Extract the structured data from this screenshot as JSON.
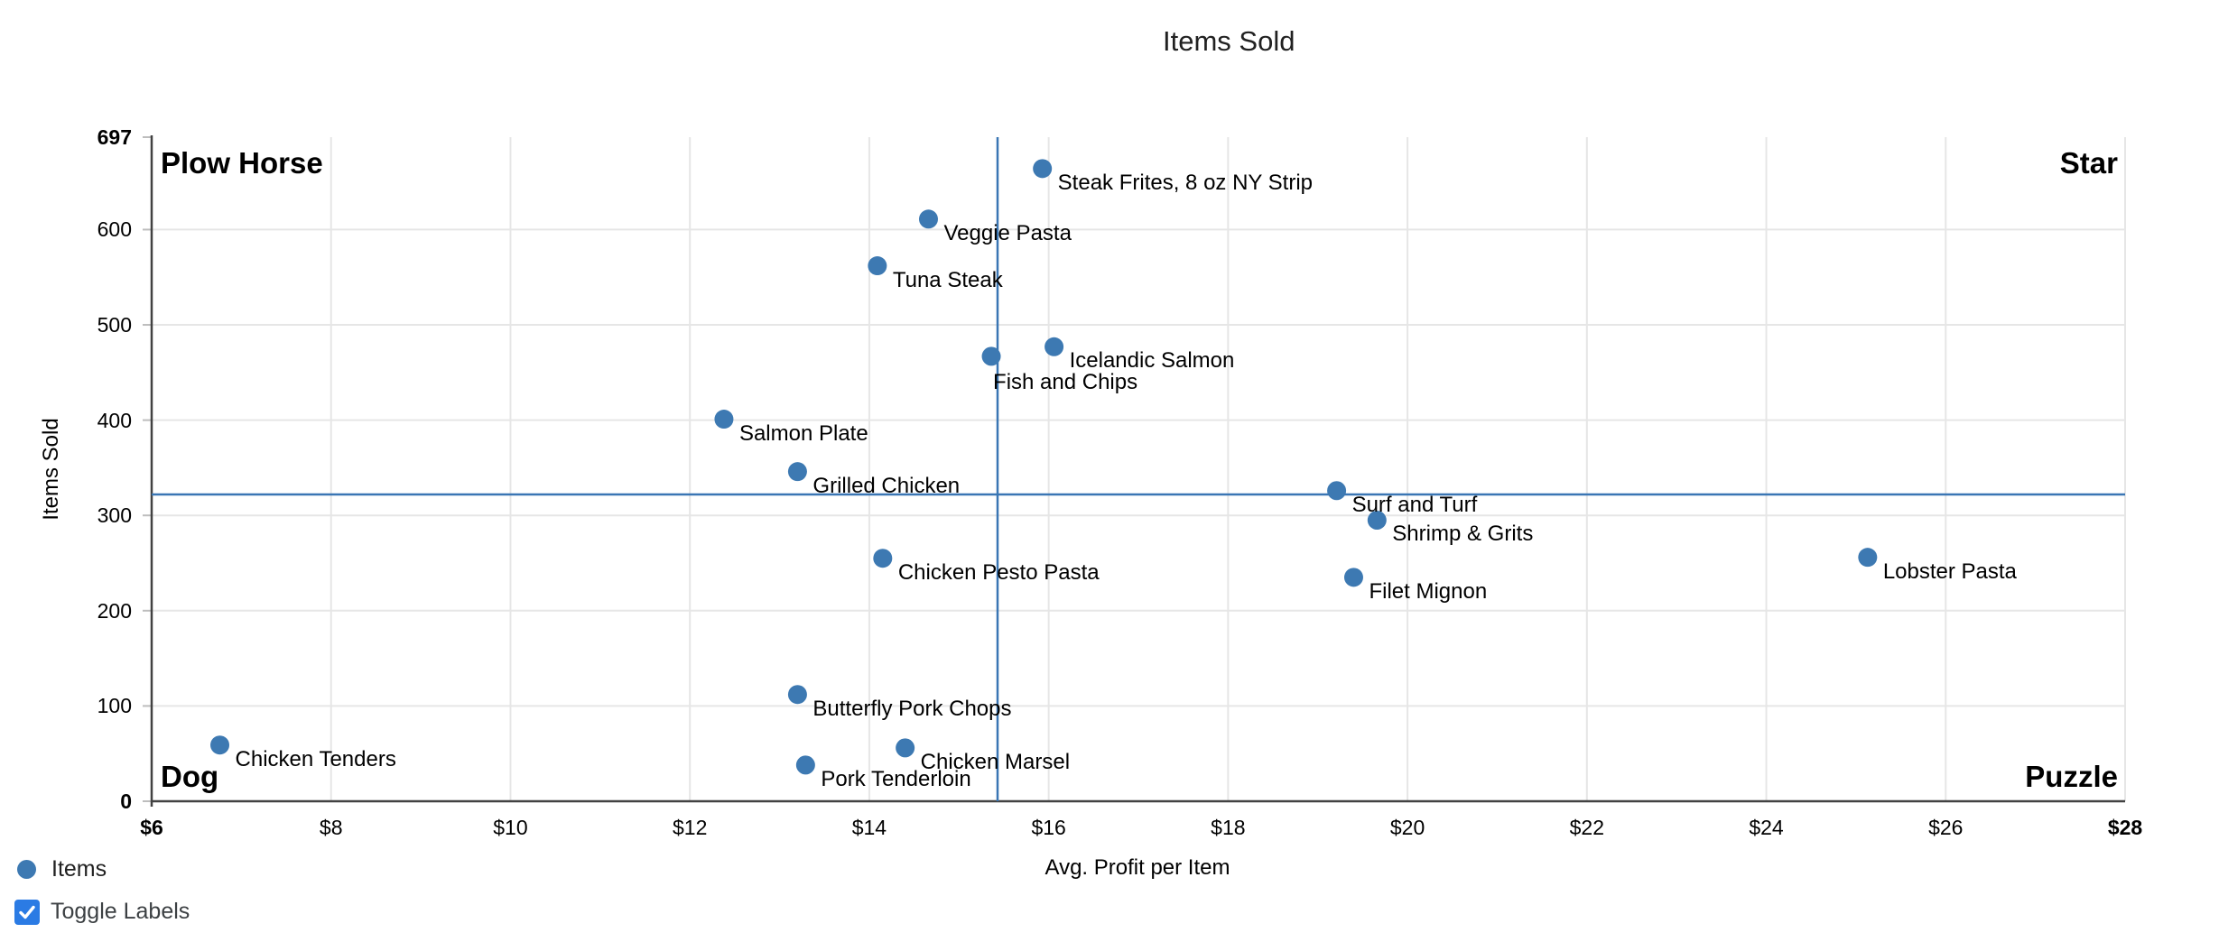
{
  "colors": {
    "point": "#3d79b2",
    "reference_line": "#3a76b4",
    "grid": "#e6e6e6",
    "axis": "#424242",
    "tick_mark": "#bdbdbd",
    "checkbox_fill": "#2b7be4",
    "checkbox_check": "#ffffff"
  },
  "legend": {
    "series_label": "Items"
  },
  "controls": {
    "toggle_labels_label": "Toggle Labels",
    "toggle_labels_checked": true
  },
  "chart_data": {
    "type": "scatter",
    "title": "Items Sold",
    "xlabel": "Avg. Profit per Item",
    "ylabel": "Items Sold",
    "xlim": [
      6,
      28
    ],
    "ylim": [
      0,
      697
    ],
    "grid": true,
    "legend_position": "bottom-left",
    "series_name": "Items",
    "quadrants": {
      "top_left": "Plow Horse",
      "top_right": "Star",
      "bottom_left": "Dog",
      "bottom_right": "Puzzle"
    },
    "reference_lines": {
      "vertical_x": 15.43,
      "horizontal_y": 322
    },
    "x_ticks": [
      {
        "value": 6,
        "label": "$6",
        "bold": true
      },
      {
        "value": 8,
        "label": "$8"
      },
      {
        "value": 10,
        "label": "$10"
      },
      {
        "value": 12,
        "label": "$12"
      },
      {
        "value": 14,
        "label": "$14"
      },
      {
        "value": 16,
        "label": "$16"
      },
      {
        "value": 18,
        "label": "$18"
      },
      {
        "value": 20,
        "label": "$20"
      },
      {
        "value": 22,
        "label": "$22"
      },
      {
        "value": 24,
        "label": "$24"
      },
      {
        "value": 26,
        "label": "$26"
      },
      {
        "value": 28,
        "label": "$28",
        "bold": true
      }
    ],
    "y_ticks": [
      {
        "value": 0,
        "label": "0",
        "bold": true
      },
      {
        "value": 100,
        "label": "100"
      },
      {
        "value": 200,
        "label": "200"
      },
      {
        "value": 300,
        "label": "300"
      },
      {
        "value": 400,
        "label": "400"
      },
      {
        "value": 500,
        "label": "500"
      },
      {
        "value": 600,
        "label": "600"
      },
      {
        "value": 697,
        "label": "697",
        "bold": true
      }
    ],
    "points": [
      {
        "label": "Steak Frites, 8 oz NY Strip",
        "x": 15.93,
        "y": 664
      },
      {
        "label": "Veggie Pasta",
        "x": 14.66,
        "y": 611
      },
      {
        "label": "Tuna Steak",
        "x": 14.09,
        "y": 562
      },
      {
        "label": "Icelandic Salmon",
        "x": 16.06,
        "y": 477
      },
      {
        "label": "Fish and Chips",
        "x": 15.36,
        "y": 467,
        "label_dx": 2,
        "label_dy": 29
      },
      {
        "label": "Salmon Plate",
        "x": 12.38,
        "y": 401
      },
      {
        "label": "Grilled Chicken",
        "x": 13.2,
        "y": 346
      },
      {
        "label": "Surf and Turf",
        "x": 19.21,
        "y": 326
      },
      {
        "label": "Shrimp & Grits",
        "x": 19.66,
        "y": 295
      },
      {
        "label": "Chicken Pesto Pasta",
        "x": 14.15,
        "y": 255
      },
      {
        "label": "Filet Mignon",
        "x": 19.4,
        "y": 235
      },
      {
        "label": "Lobster Pasta",
        "x": 25.13,
        "y": 256
      },
      {
        "label": "Butterfly Pork Chops",
        "x": 13.2,
        "y": 112
      },
      {
        "label": "Chicken Tenders",
        "x": 6.76,
        "y": 59
      },
      {
        "label": "Chicken Marsel",
        "x": 14.4,
        "y": 56
      },
      {
        "label": "Pork Tenderloin",
        "x": 13.29,
        "y": 38
      }
    ]
  }
}
